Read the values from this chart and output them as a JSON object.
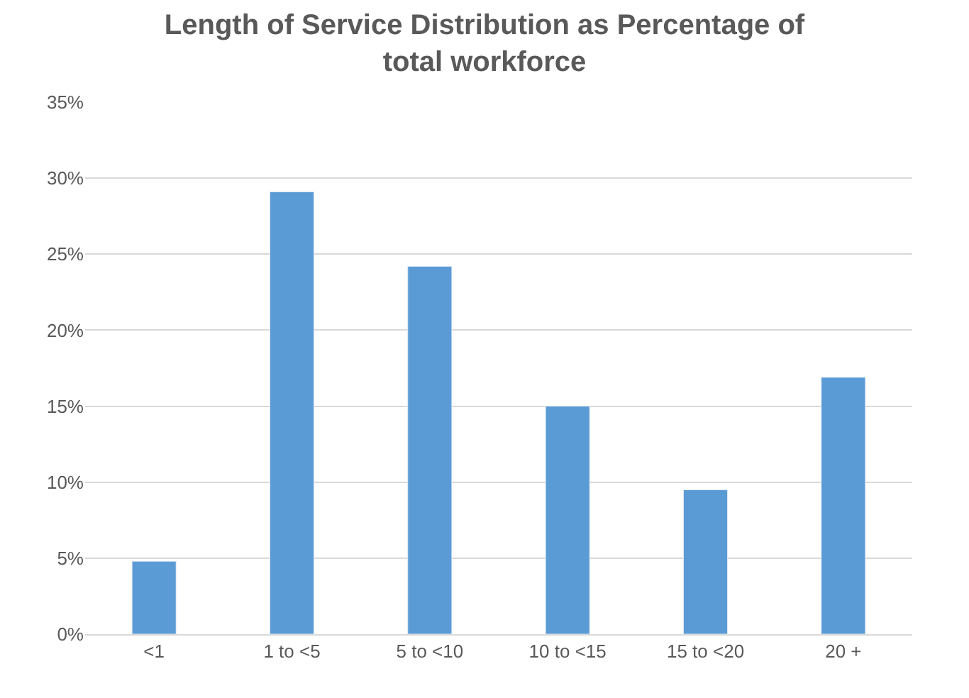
{
  "chart_data": {
    "type": "bar",
    "title": "Length of Service Distribution as Percentage of total workforce",
    "categories": [
      "<1",
      "1 to <5",
      "5 to <10",
      "10 to <15",
      "15 to <20",
      "20 +"
    ],
    "values": [
      4.8,
      29.1,
      24.2,
      15.0,
      9.5,
      16.9
    ],
    "color": "#5b9bd5",
    "ylim": [
      0,
      35
    ],
    "yticks": [
      {
        "value": 0,
        "label": "0%"
      },
      {
        "value": 5,
        "label": "5%"
      },
      {
        "value": 10,
        "label": "10%"
      },
      {
        "value": 15,
        "label": "15%"
      },
      {
        "value": 20,
        "label": "20%"
      },
      {
        "value": 25,
        "label": "25%"
      },
      {
        "value": 30,
        "label": "30%"
      },
      {
        "value": 35,
        "label": "35%"
      }
    ],
    "grid": "y"
  }
}
